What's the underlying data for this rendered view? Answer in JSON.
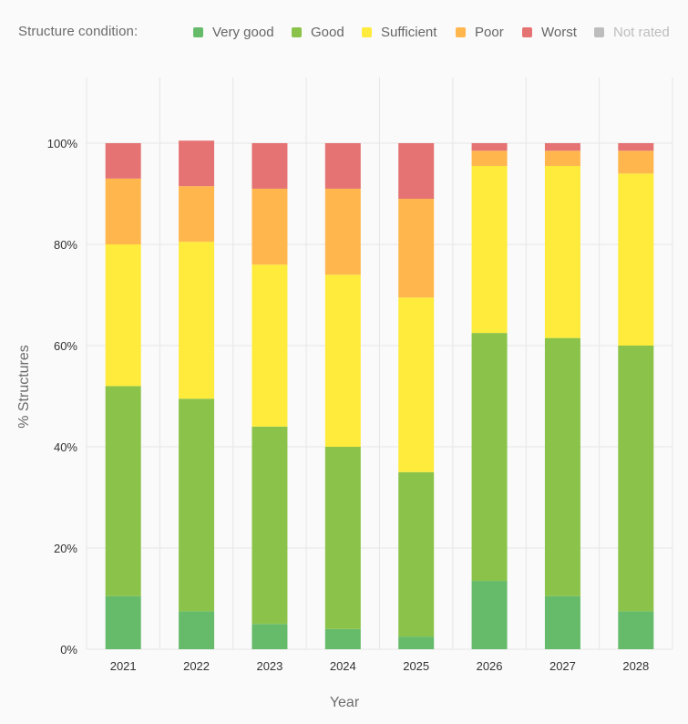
{
  "legend": {
    "title": "Structure condition:",
    "items": [
      {
        "label": "Very good",
        "color": "#66bb6a",
        "enabled": true
      },
      {
        "label": "Good",
        "color": "#8bc34a",
        "enabled": true
      },
      {
        "label": "Sufficient",
        "color": "#ffeb3b",
        "enabled": true
      },
      {
        "label": "Poor",
        "color": "#ffb74d",
        "enabled": true
      },
      {
        "label": "Worst",
        "color": "#e57373",
        "enabled": true
      },
      {
        "label": "Not rated",
        "color": "#bdbdbd",
        "enabled": false
      }
    ]
  },
  "chart_data": {
    "type": "bar",
    "stacked": true,
    "categories": [
      "2021",
      "2022",
      "2023",
      "2024",
      "2025",
      "2026",
      "2027",
      "2028"
    ],
    "series": [
      {
        "name": "Very good",
        "color": "#66bb6a",
        "values": [
          10.5,
          7.5,
          5,
          4,
          2.5,
          13.5,
          10.5,
          7.5
        ]
      },
      {
        "name": "Good",
        "color": "#8bc34a",
        "values": [
          41.5,
          42,
          39,
          36,
          32.5,
          49,
          51,
          52.5
        ]
      },
      {
        "name": "Sufficient",
        "color": "#ffeb3b",
        "values": [
          28,
          31,
          32,
          34,
          34.5,
          33,
          34,
          34
        ]
      },
      {
        "name": "Poor",
        "color": "#ffb74d",
        "values": [
          13,
          11,
          15,
          17,
          19.5,
          3,
          3,
          4.5
        ]
      },
      {
        "name": "Worst",
        "color": "#e57373",
        "values": [
          7,
          9,
          9,
          9,
          11,
          1.5,
          1.5,
          1.5
        ]
      }
    ],
    "xlabel": "Year",
    "ylabel": "% Structures",
    "ylim": [
      0,
      100
    ],
    "yticks": [
      "0%",
      "20%",
      "40%",
      "60%",
      "80%",
      "100%"
    ],
    "grid": true,
    "legend_position": "top"
  }
}
